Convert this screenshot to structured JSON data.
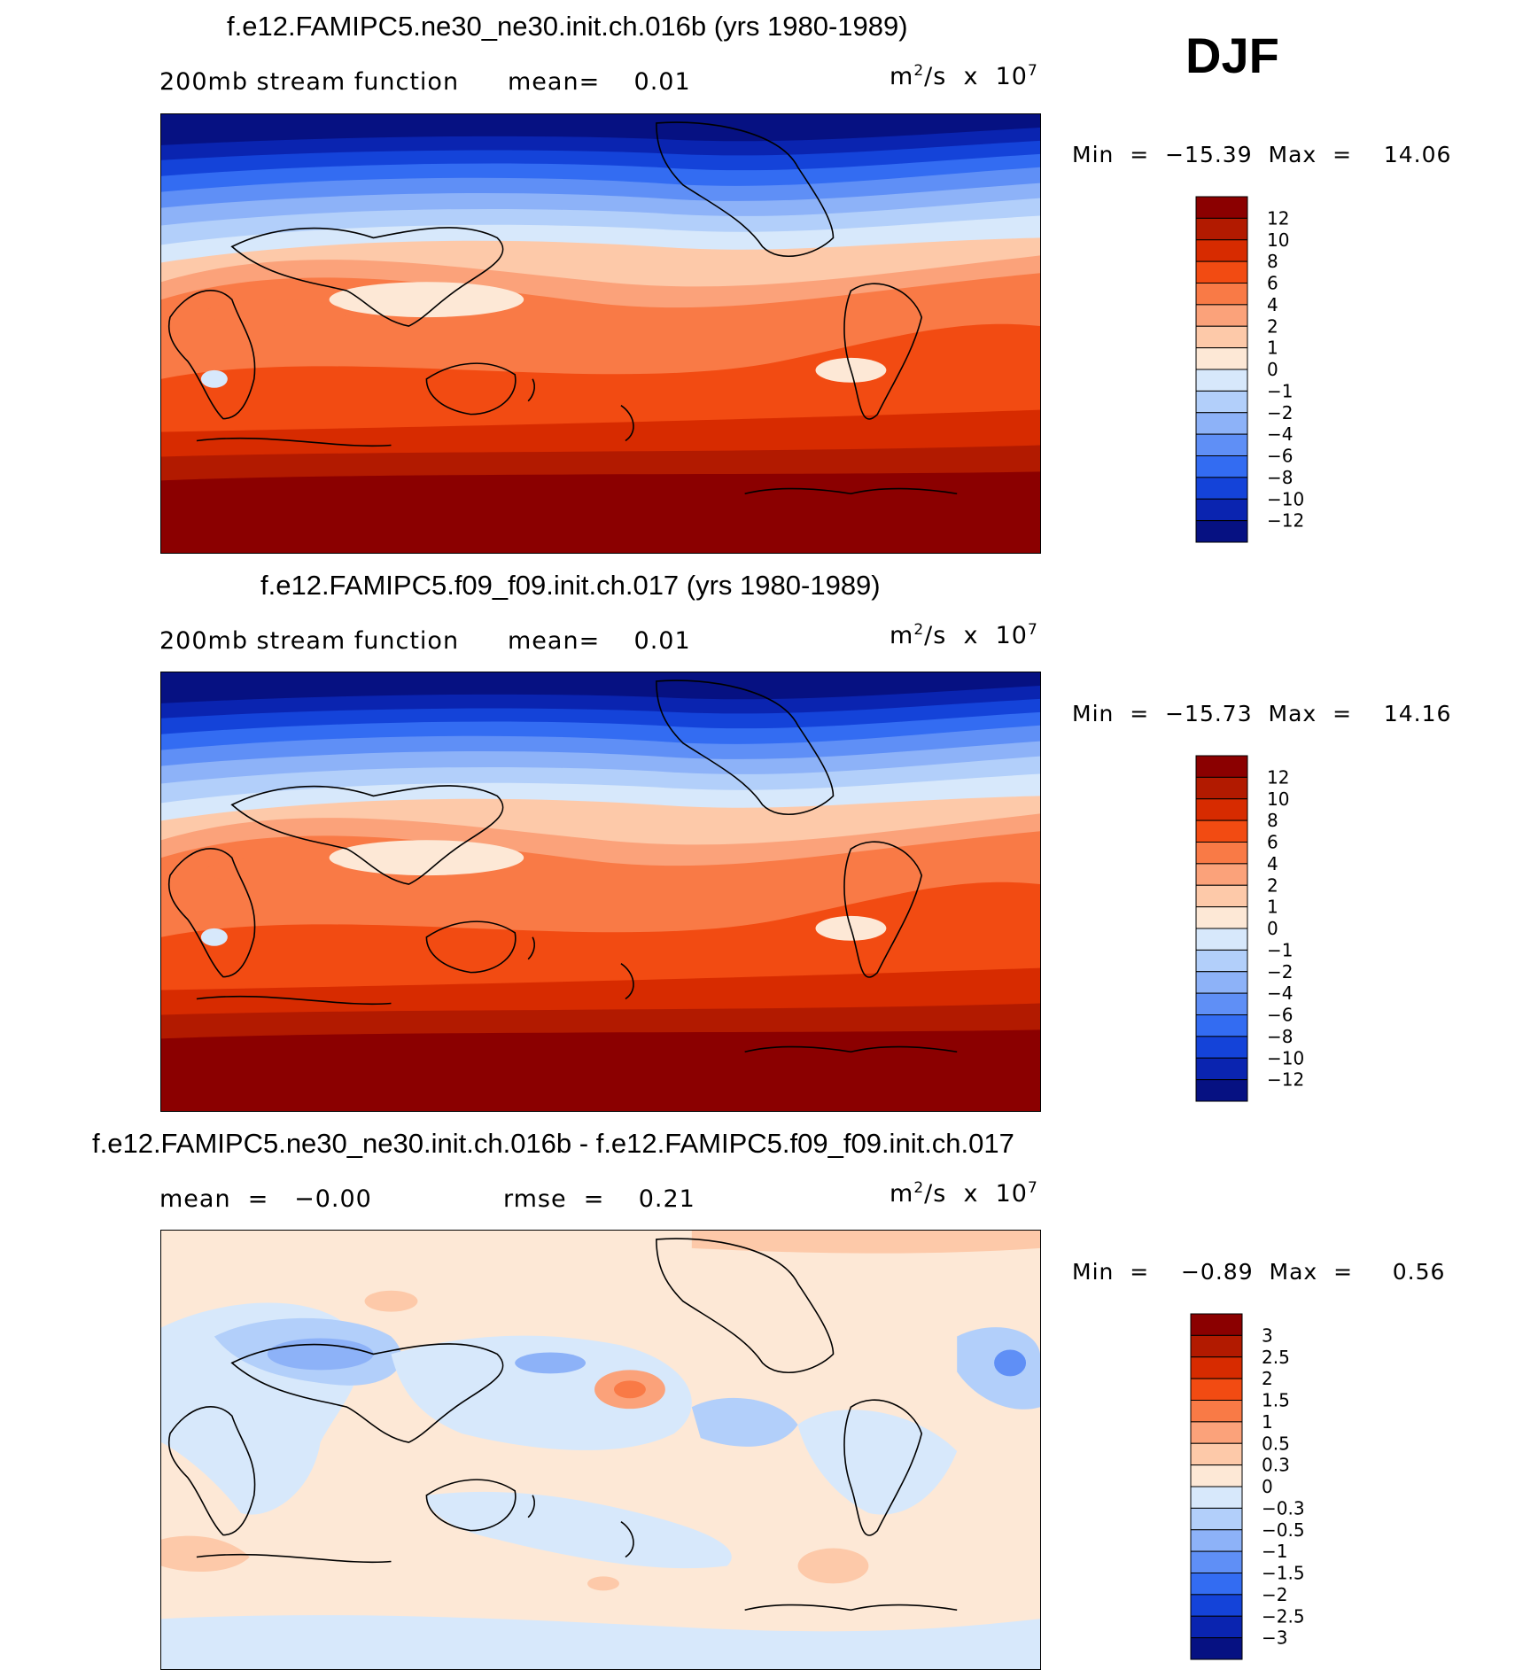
{
  "season": "DJF",
  "panels": [
    {
      "title": "f.e12.FAMIPC5.ne30_ne30.init.ch.016b (yrs 1980-1989)",
      "subtitle_left": "200mb stream function",
      "stat1": "mean=    0.01",
      "units": "m",
      "units_sup": "2",
      "units_rest": "/s  x  10",
      "units_exp": "7",
      "minmax": "Min  =  −15.39  Max  =    14.06",
      "colorbar": {
        "labels": [
          "12",
          "10",
          "8",
          "6",
          "4",
          "2",
          "1",
          "0",
          "−1",
          "−2",
          "−4",
          "−6",
          "−8",
          "−10",
          "−12"
        ],
        "colors": [
          "#8b0000",
          "#b21a00",
          "#d72b00",
          "#f24b12",
          "#f97a46",
          "#fba27a",
          "#fdc9a9",
          "#fde8d6",
          "#d7e8fb",
          "#b2cffa",
          "#8db2f8",
          "#5f8ff6",
          "#336cf2",
          "#1443d9",
          "#0a24b0",
          "#061182"
        ]
      }
    },
    {
      "title": "f.e12.FAMIPC5.f09_f09.init.ch.017 (yrs 1980-1989)",
      "subtitle_left": "200mb stream function",
      "stat1": "mean=    0.01",
      "units": "m",
      "units_sup": "2",
      "units_rest": "/s  x  10",
      "units_exp": "7",
      "minmax": "Min  =  −15.73  Max  =    14.16",
      "colorbar": {
        "labels": [
          "12",
          "10",
          "8",
          "6",
          "4",
          "2",
          "1",
          "0",
          "−1",
          "−2",
          "−4",
          "−6",
          "−8",
          "−10",
          "−12"
        ],
        "colors": [
          "#8b0000",
          "#b21a00",
          "#d72b00",
          "#f24b12",
          "#f97a46",
          "#fba27a",
          "#fdc9a9",
          "#fde8d6",
          "#d7e8fb",
          "#b2cffa",
          "#8db2f8",
          "#5f8ff6",
          "#336cf2",
          "#1443d9",
          "#0a24b0",
          "#061182"
        ]
      }
    },
    {
      "title": "f.e12.FAMIPC5.ne30_ne30.init.ch.016b - f.e12.FAMIPC5.f09_f09.init.ch.017",
      "subtitle_left": "mean  =   −0.00",
      "stat1": "rmse  =    0.21",
      "units": "m",
      "units_sup": "2",
      "units_rest": "/s  x  10",
      "units_exp": "7",
      "minmax": "Min  =    −0.89  Max  =     0.56",
      "colorbar": {
        "labels": [
          "3",
          "2.5",
          "2",
          "1.5",
          "1",
          "0.5",
          "0.3",
          "0",
          "−0.3",
          "−0.5",
          "−1",
          "−1.5",
          "−2",
          "−2.5",
          "−3"
        ],
        "colors": [
          "#8b0000",
          "#b21a00",
          "#d72b00",
          "#f24b12",
          "#f97a46",
          "#fba27a",
          "#fdc9a9",
          "#fde8d6",
          "#d7e8fb",
          "#b2cffa",
          "#8db2f8",
          "#5f8ff6",
          "#336cf2",
          "#1443d9",
          "#0a24b0",
          "#061182"
        ]
      }
    }
  ]
}
